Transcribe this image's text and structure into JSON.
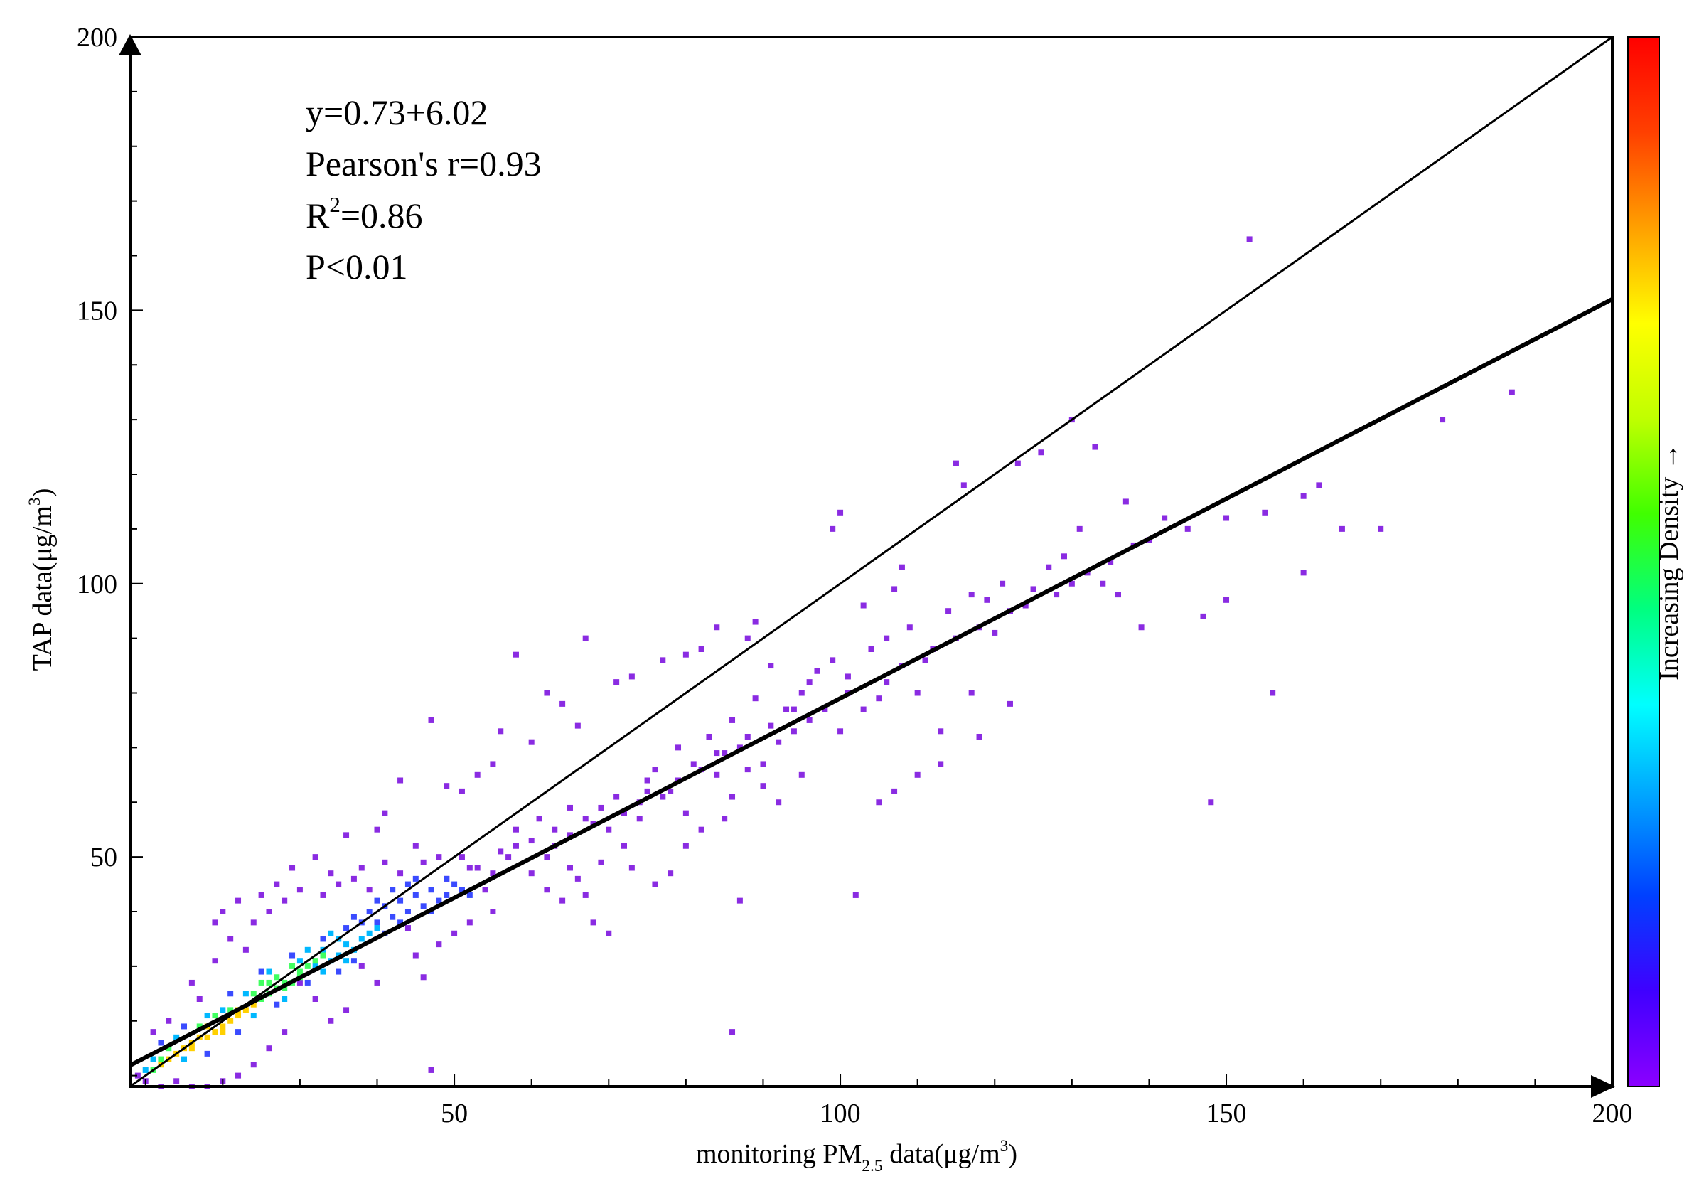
{
  "chart_data": {
    "type": "scatter",
    "xlabel": {
      "prefix": "monitoring PM",
      "sub": "2.5",
      "middle": " data(μg/m",
      "sup": "3",
      "suffix": ")"
    },
    "ylabel": {
      "prefix": "TAP data(μg/m",
      "sup": "3",
      "suffix": ")"
    },
    "xlim": [
      8,
      200
    ],
    "ylim": [
      8,
      200
    ],
    "x_ticks": [
      50,
      100,
      150,
      200
    ],
    "y_ticks": [
      50,
      100,
      150,
      200
    ],
    "annotations": {
      "equation": "y=0.73+6.02",
      "pearson": "Pearson's r=0.93",
      "r2_prefix": "R",
      "r2_sup": "2",
      "r2_suffix": "=0.86",
      "p_value": "P<0.01"
    },
    "reference_line": {
      "slope": 1,
      "intercept": 0
    },
    "regression_line": {
      "slope": 0.73,
      "intercept": 6.02
    },
    "colorbar": {
      "label": "Increasing Density →",
      "colors": [
        "#8b00ff",
        "#3f00ff",
        "#0040ff",
        "#00a0ff",
        "#00ffff",
        "#00ff80",
        "#40ff00",
        "#c0ff00",
        "#ffff00",
        "#ffa000",
        "#ff4000",
        "#ff0000"
      ]
    },
    "density_colors": {
      "low": "#8a2be2",
      "medium_low": "#3a4bff",
      "medium": "#00b8ff",
      "medium_high": "#40ff60",
      "high": "#ffd000",
      "very_high": "#ff3010"
    },
    "points": {
      "high": [
        [
          15,
          15
        ],
        [
          16,
          16
        ],
        [
          17,
          17
        ],
        [
          18,
          17
        ],
        [
          19,
          18
        ],
        [
          20,
          19
        ],
        [
          21,
          20
        ],
        [
          22,
          21
        ],
        [
          23,
          22
        ],
        [
          14,
          14
        ],
        [
          16,
          15
        ],
        [
          18,
          19
        ],
        [
          20,
          18
        ],
        [
          22,
          22
        ],
        [
          24,
          23
        ],
        [
          12,
          12
        ],
        [
          13,
          13
        ]
      ],
      "medium_high": [
        [
          25,
          24
        ],
        [
          26,
          25
        ],
        [
          27,
          26
        ],
        [
          28,
          27
        ],
        [
          29,
          27
        ],
        [
          30,
          28
        ],
        [
          24,
          25
        ],
        [
          26,
          27
        ],
        [
          28,
          26
        ],
        [
          30,
          29
        ],
        [
          31,
          30
        ],
        [
          12,
          13
        ],
        [
          11,
          11
        ],
        [
          13,
          15
        ],
        [
          17,
          19
        ],
        [
          19,
          21
        ],
        [
          21,
          22
        ],
        [
          25,
          27
        ],
        [
          27,
          28
        ],
        [
          29,
          30
        ],
        [
          32,
          31
        ],
        [
          33,
          32
        ]
      ],
      "medium": [
        [
          32,
          30
        ],
        [
          33,
          33
        ],
        [
          34,
          31
        ],
        [
          35,
          32
        ],
        [
          36,
          34
        ],
        [
          37,
          33
        ],
        [
          38,
          35
        ],
        [
          30,
          31
        ],
        [
          31,
          33
        ],
        [
          33,
          29
        ],
        [
          35,
          35
        ],
        [
          36,
          31
        ],
        [
          10,
          11
        ],
        [
          11,
          13
        ],
        [
          14,
          17
        ],
        [
          15,
          13
        ],
        [
          18,
          21
        ],
        [
          20,
          22
        ],
        [
          23,
          25
        ],
        [
          24,
          21
        ],
        [
          26,
          29
        ],
        [
          28,
          24
        ],
        [
          39,
          36
        ],
        [
          40,
          37
        ],
        [
          34,
          36
        ]
      ],
      "medium_low": [
        [
          38,
          38
        ],
        [
          39,
          40
        ],
        [
          40,
          38
        ],
        [
          41,
          41
        ],
        [
          42,
          39
        ],
        [
          43,
          42
        ],
        [
          44,
          40
        ],
        [
          45,
          43
        ],
        [
          46,
          41
        ],
        [
          47,
          44
        ],
        [
          48,
          42
        ],
        [
          49,
          43
        ],
        [
          50,
          45
        ],
        [
          37,
          39
        ],
        [
          36,
          37
        ],
        [
          41,
          36
        ],
        [
          43,
          38
        ],
        [
          45,
          46
        ],
        [
          47,
          40
        ],
        [
          49,
          46
        ],
        [
          51,
          44
        ],
        [
          52,
          43
        ],
        [
          40,
          42
        ],
        [
          42,
          44
        ],
        [
          44,
          45
        ],
        [
          12,
          16
        ],
        [
          15,
          19
        ],
        [
          18,
          14
        ],
        [
          21,
          25
        ],
        [
          22,
          18
        ],
        [
          25,
          29
        ],
        [
          27,
          23
        ],
        [
          29,
          32
        ],
        [
          31,
          27
        ],
        [
          33,
          35
        ],
        [
          35,
          29
        ],
        [
          37,
          31
        ]
      ],
      "low": [
        [
          49,
          46
        ],
        [
          52,
          48
        ],
        [
          55,
          47
        ],
        [
          57,
          50
        ],
        [
          58,
          52
        ],
        [
          60,
          53
        ],
        [
          62,
          50
        ],
        [
          63,
          55
        ],
        [
          65,
          54
        ],
        [
          67,
          57
        ],
        [
          69,
          59
        ],
        [
          70,
          55
        ],
        [
          72,
          58
        ],
        [
          74,
          60
        ],
        [
          75,
          62
        ],
        [
          77,
          61
        ],
        [
          79,
          64
        ],
        [
          80,
          58
        ],
        [
          82,
          66
        ],
        [
          84,
          65
        ],
        [
          85,
          69
        ],
        [
          87,
          70
        ],
        [
          88,
          72
        ],
        [
          90,
          67
        ],
        [
          92,
          71
        ],
        [
          94,
          73
        ],
        [
          96,
          75
        ],
        [
          98,
          77
        ],
        [
          100,
          73
        ],
        [
          101,
          80
        ],
        [
          103,
          77
        ],
        [
          105,
          79
        ],
        [
          106,
          82
        ],
        [
          108,
          85
        ],
        [
          110,
          80
        ],
        [
          112,
          88
        ],
        [
          115,
          90
        ],
        [
          118,
          92
        ],
        [
          120,
          91
        ],
        [
          122,
          95
        ],
        [
          125,
          99
        ],
        [
          128,
          98
        ],
        [
          130,
          100
        ],
        [
          132,
          102
        ],
        [
          135,
          104
        ],
        [
          138,
          107
        ],
        [
          140,
          108
        ],
        [
          145,
          110
        ],
        [
          150,
          112
        ],
        [
          155,
          113
        ],
        [
          160,
          116
        ],
        [
          165,
          110
        ],
        [
          170,
          110
        ],
        [
          178,
          130
        ],
        [
          187,
          135
        ],
        [
          153,
          163
        ],
        [
          148,
          60
        ],
        [
          156,
          80
        ],
        [
          162,
          118
        ],
        [
          160,
          102
        ],
        [
          133,
          125
        ],
        [
          130,
          130
        ],
        [
          126,
          124
        ],
        [
          123,
          122
        ],
        [
          115,
          122
        ],
        [
          116,
          118
        ],
        [
          100,
          113
        ],
        [
          99,
          110
        ],
        [
          107,
          99
        ],
        [
          103,
          96
        ],
        [
          108,
          103
        ],
        [
          95,
          80
        ],
        [
          97,
          84
        ],
        [
          93,
          77
        ],
        [
          91,
          85
        ],
        [
          89,
          93
        ],
        [
          88,
          90
        ],
        [
          84,
          92
        ],
        [
          82,
          88
        ],
        [
          80,
          87
        ],
        [
          77,
          86
        ],
        [
          73,
          83
        ],
        [
          71,
          82
        ],
        [
          67,
          90
        ],
        [
          66,
          74
        ],
        [
          64,
          78
        ],
        [
          62,
          80
        ],
        [
          60,
          71
        ],
        [
          58,
          87
        ],
        [
          56,
          73
        ],
        [
          55,
          67
        ],
        [
          53,
          65
        ],
        [
          51,
          62
        ],
        [
          49,
          63
        ],
        [
          47,
          75
        ],
        [
          45,
          52
        ],
        [
          43,
          64
        ],
        [
          41,
          58
        ],
        [
          40,
          55
        ],
        [
          38,
          48
        ],
        [
          36,
          54
        ],
        [
          34,
          47
        ],
        [
          32,
          50
        ],
        [
          29,
          48
        ],
        [
          27,
          45
        ],
        [
          25,
          43
        ],
        [
          22,
          42
        ],
        [
          20,
          40
        ],
        [
          19,
          38
        ],
        [
          60,
          47
        ],
        [
          62,
          44
        ],
        [
          64,
          42
        ],
        [
          66,
          46
        ],
        [
          68,
          38
        ],
        [
          70,
          36
        ],
        [
          73,
          48
        ],
        [
          76,
          45
        ],
        [
          78,
          47
        ],
        [
          80,
          52
        ],
        [
          82,
          55
        ],
        [
          85,
          57
        ],
        [
          87,
          42
        ],
        [
          86,
          18
        ],
        [
          102,
          43
        ],
        [
          110,
          65
        ],
        [
          113,
          67
        ],
        [
          118,
          72
        ],
        [
          105,
          60
        ],
        [
          107,
          62
        ],
        [
          95,
          65
        ],
        [
          92,
          60
        ],
        [
          90,
          63
        ],
        [
          88,
          66
        ],
        [
          86,
          61
        ],
        [
          84,
          69
        ],
        [
          78,
          62
        ],
        [
          75,
          64
        ],
        [
          72,
          52
        ],
        [
          69,
          49
        ],
        [
          67,
          43
        ],
        [
          65,
          48
        ],
        [
          55,
          40
        ],
        [
          54,
          44
        ],
        [
          52,
          38
        ],
        [
          50,
          36
        ],
        [
          48,
          34
        ],
        [
          46,
          28
        ],
        [
          45,
          32
        ],
        [
          44,
          37
        ],
        [
          47,
          11
        ],
        [
          40,
          27
        ],
        [
          38,
          30
        ],
        [
          36,
          22
        ],
        [
          34,
          20
        ],
        [
          32,
          24
        ],
        [
          30,
          27
        ],
        [
          28,
          18
        ],
        [
          26,
          15
        ],
        [
          24,
          12
        ],
        [
          22,
          10
        ],
        [
          20,
          9
        ],
        [
          18,
          8
        ],
        [
          16,
          8
        ],
        [
          14,
          9
        ],
        [
          12,
          8
        ],
        [
          10,
          9
        ],
        [
          9,
          10
        ],
        [
          11,
          18
        ],
        [
          13,
          20
        ],
        [
          16,
          27
        ],
        [
          17,
          24
        ],
        [
          19,
          31
        ],
        [
          21,
          35
        ],
        [
          23,
          33
        ],
        [
          24,
          38
        ],
        [
          26,
          40
        ],
        [
          28,
          42
        ],
        [
          30,
          44
        ],
        [
          33,
          43
        ],
        [
          35,
          45
        ],
        [
          37,
          46
        ],
        [
          39,
          44
        ],
        [
          41,
          49
        ],
        [
          43,
          47
        ],
        [
          46,
          49
        ],
        [
          48,
          50
        ],
        [
          51,
          50
        ],
        [
          53,
          48
        ],
        [
          56,
          51
        ],
        [
          58,
          55
        ],
        [
          61,
          57
        ],
        [
          63,
          52
        ],
        [
          65,
          59
        ],
        [
          68,
          56
        ],
        [
          71,
          61
        ],
        [
          74,
          57
        ],
        [
          76,
          66
        ],
        [
          79,
          70
        ],
        [
          81,
          67
        ],
        [
          83,
          72
        ],
        [
          86,
          75
        ],
        [
          89,
          79
        ],
        [
          91,
          74
        ],
        [
          94,
          77
        ],
        [
          96,
          82
        ],
        [
          99,
          86
        ],
        [
          101,
          83
        ],
        [
          104,
          88
        ],
        [
          106,
          90
        ],
        [
          109,
          92
        ],
        [
          111,
          86
        ],
        [
          114,
          95
        ],
        [
          117,
          98
        ],
        [
          119,
          97
        ],
        [
          121,
          100
        ],
        [
          124,
          96
        ],
        [
          127,
          103
        ],
        [
          129,
          105
        ],
        [
          131,
          110
        ],
        [
          134,
          100
        ],
        [
          137,
          115
        ],
        [
          142,
          112
        ],
        [
          147,
          94
        ],
        [
          150,
          97
        ],
        [
          139,
          92
        ],
        [
          136,
          98
        ],
        [
          122,
          78
        ],
        [
          117,
          80
        ],
        [
          113,
          73
        ]
      ]
    }
  }
}
